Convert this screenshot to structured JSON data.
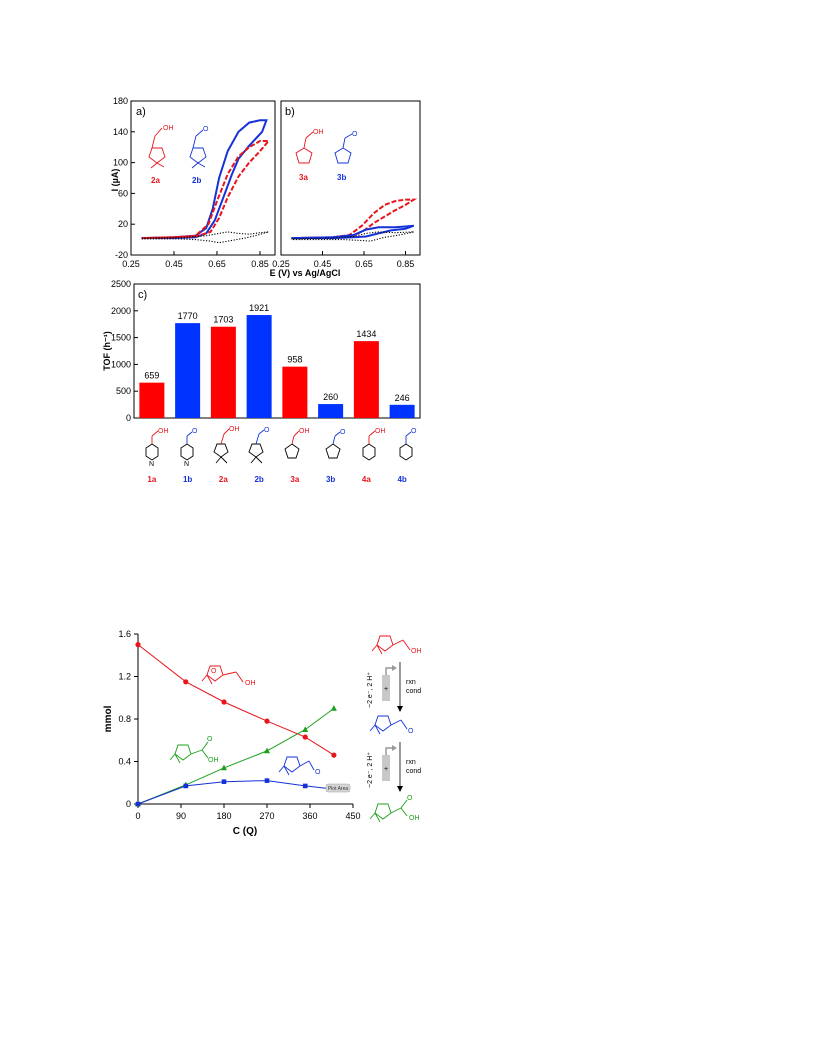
{
  "chart_data": [
    {
      "type": "line",
      "panel_label": "a)",
      "xlabel": "E (V) vs Ag/AgCl",
      "ylabel": "I (µA)",
      "xlim": [
        0.25,
        0.92
      ],
      "ylim": [
        -20,
        180
      ],
      "xticks": [
        "0.25",
        "0.45",
        "0.65",
        "0.85"
      ],
      "yticks": [
        "-20",
        "20",
        "60",
        "100",
        "140",
        "180"
      ],
      "compounds": [
        {
          "label": "2a",
          "color": "#e8141c"
        },
        {
          "label": "2b",
          "color": "#1432d8"
        }
      ],
      "series": [
        {
          "style": "solid",
          "color": "#1432d8",
          "forward": [
            [
              0.3,
              2
            ],
            [
              0.45,
              3
            ],
            [
              0.55,
              5
            ],
            [
              0.6,
              15
            ],
            [
              0.63,
              40
            ],
            [
              0.66,
              80
            ],
            [
              0.7,
              115
            ],
            [
              0.75,
              140
            ],
            [
              0.8,
              152
            ],
            [
              0.85,
              155
            ],
            [
              0.88,
              155
            ]
          ],
          "reverse": [
            [
              0.88,
              155
            ],
            [
              0.86,
              140
            ],
            [
              0.8,
              122
            ],
            [
              0.75,
              105
            ],
            [
              0.72,
              85
            ],
            [
              0.68,
              55
            ],
            [
              0.64,
              25
            ],
            [
              0.6,
              8
            ],
            [
              0.55,
              3
            ],
            [
              0.45,
              2
            ],
            [
              0.3,
              2
            ]
          ]
        },
        {
          "style": "dashed",
          "color": "#e8141c",
          "forward": [
            [
              0.3,
              2
            ],
            [
              0.45,
              3
            ],
            [
              0.55,
              5
            ],
            [
              0.61,
              20
            ],
            [
              0.65,
              50
            ],
            [
              0.7,
              85
            ],
            [
              0.75,
              108
            ],
            [
              0.8,
              120
            ],
            [
              0.85,
              128
            ],
            [
              0.89,
              128
            ]
          ],
          "reverse": [
            [
              0.89,
              128
            ],
            [
              0.85,
              115
            ],
            [
              0.8,
              100
            ],
            [
              0.75,
              82
            ],
            [
              0.7,
              55
            ],
            [
              0.66,
              28
            ],
            [
              0.62,
              10
            ],
            [
              0.55,
              4
            ],
            [
              0.3,
              2
            ]
          ]
        },
        {
          "style": "dotted",
          "color": "#000000",
          "forward": [
            [
              0.3,
              2
            ],
            [
              0.5,
              3
            ],
            [
              0.6,
              5
            ],
            [
              0.66,
              8
            ],
            [
              0.7,
              10
            ],
            [
              0.75,
              8
            ],
            [
              0.8,
              7
            ],
            [
              0.85,
              9
            ],
            [
              0.89,
              10
            ]
          ],
          "reverse": [
            [
              0.89,
              10
            ],
            [
              0.84,
              6
            ],
            [
              0.78,
              2
            ],
            [
              0.72,
              -1
            ],
            [
              0.66,
              -4
            ],
            [
              0.62,
              -2
            ],
            [
              0.55,
              0
            ],
            [
              0.45,
              1
            ],
            [
              0.3,
              1
            ]
          ]
        }
      ]
    },
    {
      "type": "line",
      "panel_label": "b)",
      "xlim": [
        0.25,
        0.92
      ],
      "ylim": [
        -20,
        180
      ],
      "xticks": [
        "0.25",
        "0.45",
        "0.65",
        "0.85"
      ],
      "compounds": [
        {
          "label": "3a",
          "color": "#e8141c"
        },
        {
          "label": "3b",
          "color": "#1432d8"
        }
      ],
      "series": [
        {
          "style": "dashed",
          "color": "#e8141c",
          "forward": [
            [
              0.3,
              2
            ],
            [
              0.5,
              3
            ],
            [
              0.58,
              6
            ],
            [
              0.64,
              18
            ],
            [
              0.7,
              35
            ],
            [
              0.75,
              45
            ],
            [
              0.8,
              50
            ],
            [
              0.85,
              52
            ],
            [
              0.89,
              52
            ]
          ],
          "reverse": [
            [
              0.89,
              52
            ],
            [
              0.85,
              45
            ],
            [
              0.8,
              38
            ],
            [
              0.75,
              30
            ],
            [
              0.7,
              22
            ],
            [
              0.65,
              12
            ],
            [
              0.6,
              5
            ],
            [
              0.5,
              3
            ],
            [
              0.3,
              2
            ]
          ]
        },
        {
          "style": "solid",
          "color": "#1432d8",
          "forward": [
            [
              0.3,
              2
            ],
            [
              0.5,
              3
            ],
            [
              0.6,
              6
            ],
            [
              0.66,
              13
            ],
            [
              0.72,
              16
            ],
            [
              0.8,
              16
            ],
            [
              0.85,
              17
            ],
            [
              0.89,
              18
            ]
          ],
          "reverse": [
            [
              0.89,
              18
            ],
            [
              0.85,
              14
            ],
            [
              0.78,
              12
            ],
            [
              0.72,
              8
            ],
            [
              0.66,
              4
            ],
            [
              0.6,
              3
            ],
            [
              0.5,
              2
            ],
            [
              0.3,
              2
            ]
          ]
        },
        {
          "style": "dotted",
          "color": "#000000",
          "forward": [
            [
              0.3,
              1
            ],
            [
              0.5,
              2
            ],
            [
              0.6,
              4
            ],
            [
              0.66,
              8
            ],
            [
              0.72,
              10
            ],
            [
              0.8,
              9
            ],
            [
              0.89,
              10
            ]
          ],
          "reverse": [
            [
              0.89,
              10
            ],
            [
              0.82,
              6
            ],
            [
              0.75,
              3
            ],
            [
              0.68,
              -2
            ],
            [
              0.63,
              -1
            ],
            [
              0.55,
              0
            ],
            [
              0.3,
              0
            ]
          ]
        }
      ]
    },
    {
      "type": "bar",
      "panel_label": "c)",
      "ylabel": "TOF (h⁻¹)",
      "ylim": [
        0,
        2500
      ],
      "yticks": [
        "0",
        "500",
        "1000",
        "1500",
        "2000",
        "2500"
      ],
      "categories": [
        "1a",
        "1b",
        "2a",
        "2b",
        "3a",
        "3b",
        "4a",
        "4b"
      ],
      "values": [
        659,
        1770,
        1703,
        1921,
        958,
        260,
        1434,
        246
      ],
      "value_labels": [
        "659",
        "1770",
        "1703",
        "1921",
        "958",
        "260",
        "1434",
        "246"
      ],
      "colors": [
        "#ff0000",
        "#0033ff",
        "#ff0000",
        "#0033ff",
        "#ff0000",
        "#0033ff",
        "#ff0000",
        "#0033ff"
      ],
      "label_colors": [
        "#e8141c",
        "#1432d8",
        "#e8141c",
        "#1432d8",
        "#e8141c",
        "#1432d8",
        "#e8141c",
        "#1432d8"
      ]
    },
    {
      "type": "line",
      "xlabel": "C (Q)",
      "ylabel": "mmol",
      "xlim": [
        0,
        450
      ],
      "ylim": [
        0,
        1.6
      ],
      "xticks": [
        "0",
        "90",
        "180",
        "270",
        "360",
        "450"
      ],
      "yticks": [
        "0",
        "0.4",
        "0.8",
        "1.2",
        "1.6"
      ],
      "series": [
        {
          "color": "#e8141c",
          "marker": "circle",
          "x": [
            0,
            100,
            180,
            270,
            350,
            410
          ],
          "y": [
            1.5,
            1.15,
            0.96,
            0.78,
            0.63,
            0.46
          ]
        },
        {
          "color": "#1aa01a",
          "marker": "triangle",
          "x": [
            0,
            100,
            180,
            270,
            350,
            410
          ],
          "y": [
            0,
            0.18,
            0.34,
            0.5,
            0.7,
            0.9
          ]
        },
        {
          "color": "#1432d8",
          "marker": "square",
          "x": [
            0,
            100,
            180,
            270,
            350,
            410
          ],
          "y": [
            0,
            0.17,
            0.21,
            0.22,
            0.17,
            0.14
          ]
        }
      ],
      "badge": "Plot Area",
      "scheme": {
        "electrons": "−2 e⁻, 2 H⁺",
        "condition_1": "rxn",
        "condition_2": "cond",
        "plus": "+"
      },
      "carbonyl_O": "O",
      "acid_OH": "OH",
      "alcohol_OH": "OH",
      "ring_O": "O"
    }
  ],
  "colors": {
    "red": "#e8141c",
    "blue": "#1432d8",
    "green": "#1aa01a",
    "bar_red": "#ff0000",
    "bar_blue": "#0033ff"
  }
}
